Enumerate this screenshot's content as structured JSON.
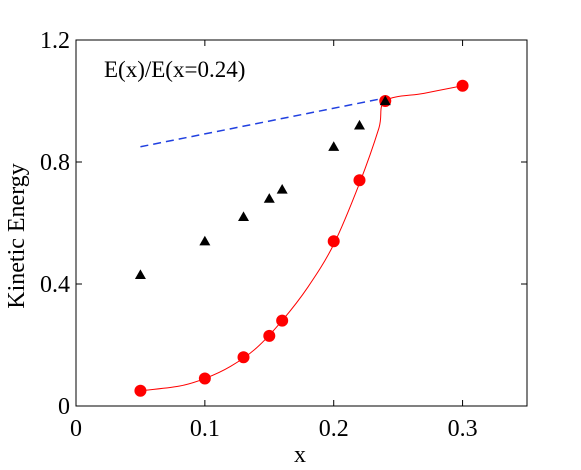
{
  "chart_data": {
    "type": "scatter",
    "title": "",
    "annotation": "E(x)/E(x=0.24)",
    "xlabel": "x",
    "ylabel": "Kinetic Energy",
    "xlim": [
      0,
      0.35
    ],
    "ylim": [
      0,
      1.2
    ],
    "xticks": [
      0,
      0.1,
      0.2,
      0.3
    ],
    "xtick_labels": [
      "0",
      "0.1",
      "0.2",
      "0.3"
    ],
    "yticks": [
      0,
      0.4,
      0.8,
      1.2
    ],
    "ytick_labels": [
      "0",
      "0.4",
      "0.8",
      "1.2"
    ],
    "grid": false,
    "legend": "none",
    "series": [
      {
        "style": "black-triangle-markers",
        "color": "#000000",
        "x": [
          0.05,
          0.1,
          0.13,
          0.15,
          0.16,
          0.2,
          0.22,
          0.24
        ],
        "y": [
          0.43,
          0.54,
          0.62,
          0.68,
          0.71,
          0.85,
          0.92,
          1.0
        ]
      },
      {
        "style": "red-circle-markers",
        "color": "#ff0000",
        "x": [
          0.05,
          0.1,
          0.13,
          0.15,
          0.16,
          0.2,
          0.22,
          0.24,
          0.3
        ],
        "y": [
          0.05,
          0.09,
          0.16,
          0.23,
          0.28,
          0.54,
          0.74,
          1.0,
          1.05
        ]
      },
      {
        "style": "red-solid-fit-curve",
        "color": "#ff0000",
        "x": [
          0.05,
          0.08,
          0.1,
          0.12,
          0.14,
          0.16,
          0.18,
          0.2,
          0.22,
          0.235,
          0.24,
          0.27,
          0.3
        ],
        "y": [
          0.05,
          0.065,
          0.09,
          0.13,
          0.19,
          0.28,
          0.39,
          0.53,
          0.73,
          0.91,
          1.0,
          1.025,
          1.05
        ]
      },
      {
        "style": "blue-dashed-line",
        "color": "#2040e0",
        "x": [
          0.05,
          0.24
        ],
        "y": [
          0.85,
          1.01
        ]
      }
    ]
  }
}
